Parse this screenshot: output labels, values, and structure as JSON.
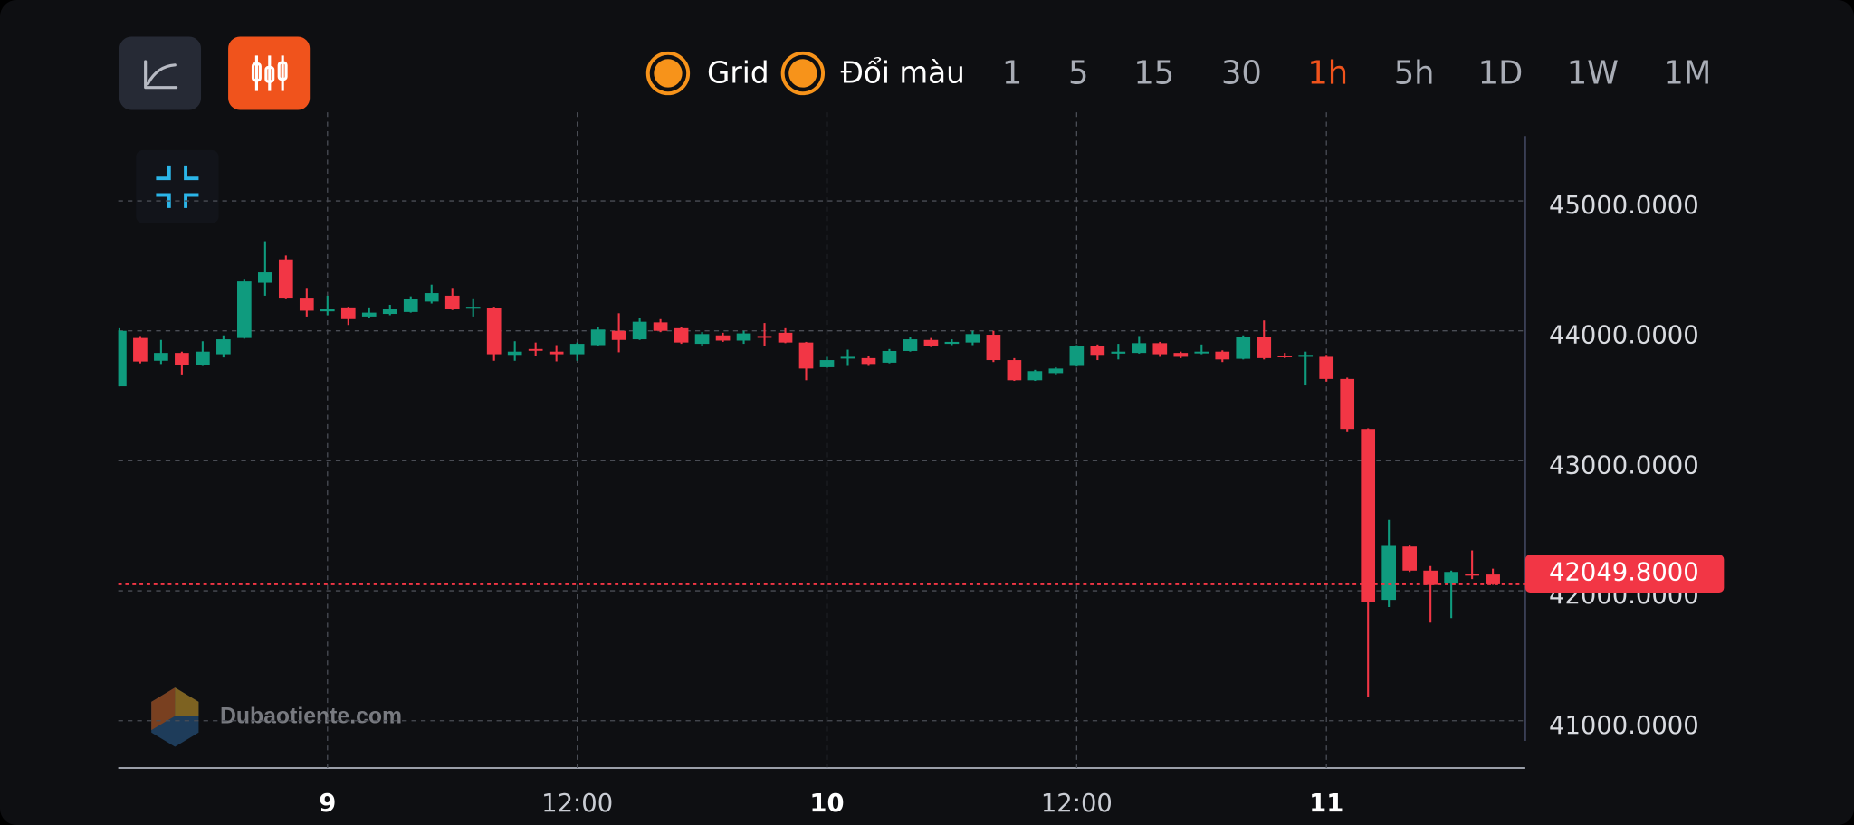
{
  "ui": {
    "toggles": [
      "Grid",
      "Đổi màu"
    ],
    "timeframes": [
      {
        "label": "1",
        "active": false
      },
      {
        "label": "5",
        "active": false
      },
      {
        "label": "15",
        "active": false
      },
      {
        "label": "30",
        "active": false
      },
      {
        "label": "1h",
        "active": true
      },
      {
        "label": "5h",
        "active": false
      },
      {
        "label": "1D",
        "active": false
      },
      {
        "label": "1W",
        "active": false
      },
      {
        "label": "1M",
        "active": false
      }
    ],
    "watermark": "Dubaotiente.com"
  },
  "chart_data": {
    "type": "candlestick",
    "up_color": "#0f9b7e",
    "down_color": "#f23645",
    "grid": true,
    "open": [
      43573,
      43945,
      43770,
      43830,
      43740,
      43820,
      43945,
      44370,
      44550,
      44255,
      44150,
      44180,
      44110,
      44130,
      44145,
      44225,
      44270,
      44170,
      44175,
      43815,
      43860,
      43840,
      43820,
      43890,
      44000,
      43935,
      44065,
      44020,
      43900,
      43965,
      43925,
      43960,
      43985,
      43910,
      43720,
      43790,
      43790,
      43755,
      43845,
      43930,
      43900,
      43910,
      43970,
      43775,
      43620,
      43675,
      43730,
      43880,
      43825,
      43830,
      43905,
      43830,
      43830,
      43840,
      43785,
      43955,
      43810,
      43800,
      43800,
      43630,
      43245,
      41930,
      42340,
      42155,
      42055,
      42130,
      42125
    ],
    "high": [
      44020,
      43960,
      43930,
      43840,
      43920,
      43965,
      44400,
      44690,
      44580,
      44330,
      44270,
      44185,
      44180,
      44200,
      44265,
      44355,
      44330,
      44250,
      44185,
      43920,
      43910,
      43890,
      43910,
      44030,
      44135,
      44100,
      44090,
      44030,
      43990,
      43985,
      44000,
      44060,
      44020,
      43915,
      43800,
      43855,
      43810,
      43860,
      43950,
      43945,
      43935,
      44000,
      44000,
      43790,
      43700,
      43720,
      43890,
      43895,
      43900,
      43960,
      43915,
      43840,
      43895,
      43850,
      43965,
      44080,
      43830,
      43840,
      43815,
      43640,
      43250,
      42545,
      42350,
      42190,
      42155,
      42310,
      42170
    ],
    "low": [
      43573,
      43750,
      43745,
      43665,
      43730,
      43795,
      43940,
      44270,
      44250,
      44110,
      44120,
      44045,
      44100,
      44120,
      44140,
      44210,
      44160,
      44110,
      43770,
      43770,
      43810,
      43765,
      43770,
      43880,
      43835,
      43930,
      43990,
      43900,
      43885,
      43915,
      43900,
      43880,
      43905,
      43620,
      43715,
      43730,
      43730,
      43750,
      43840,
      43875,
      43890,
      43890,
      43760,
      43615,
      43615,
      43665,
      43725,
      43775,
      43780,
      43825,
      43800,
      43790,
      43820,
      43760,
      43780,
      43780,
      43790,
      43580,
      43610,
      43220,
      41180,
      41875,
      42145,
      41755,
      41790,
      42090,
      42045
    ],
    "close": [
      44000,
      43764,
      43830,
      43740,
      43840,
      43935,
      44380,
      44450,
      44255,
      44155,
      44165,
      44090,
      44140,
      44165,
      44245,
      44290,
      44165,
      44185,
      43820,
      43840,
      43850,
      43820,
      43900,
      44010,
      43930,
      44070,
      44000,
      43910,
      43975,
      43925,
      43980,
      43950,
      43910,
      43710,
      43775,
      43800,
      43745,
      43845,
      43935,
      43880,
      43915,
      43975,
      43775,
      43620,
      43690,
      43710,
      43880,
      43815,
      43840,
      43905,
      43820,
      43800,
      43840,
      43780,
      43955,
      43790,
      43800,
      43815,
      43630,
      43245,
      41910,
      42345,
      42155,
      42045,
      42145,
      42120,
      42049.8
    ],
    "ylim": [
      40636.4,
      45681.8
    ],
    "yticks": [
      {
        "value": 41000,
        "label": "41000.0000"
      },
      {
        "value": 42000,
        "label": "42000.0000"
      },
      {
        "value": 43000,
        "label": "43000.0000"
      },
      {
        "value": 44000,
        "label": "44000.0000"
      },
      {
        "value": 45000,
        "label": "45000.0000"
      }
    ],
    "xticks": [
      {
        "value": 10,
        "label": "9"
      },
      {
        "value": 22,
        "label": "12:00"
      },
      {
        "value": 34,
        "label": "10"
      },
      {
        "value": 46,
        "label": "12:00"
      },
      {
        "value": 58,
        "label": "11"
      }
    ],
    "current_price": {
      "value": 42049.8,
      "label": "42049.8000"
    }
  }
}
